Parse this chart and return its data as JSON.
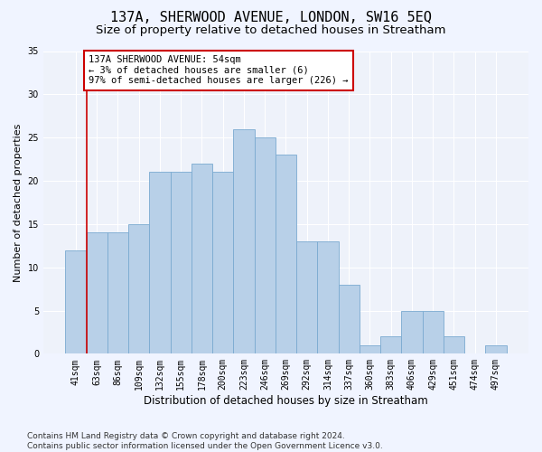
{
  "title": "137A, SHERWOOD AVENUE, LONDON, SW16 5EQ",
  "subtitle": "Size of property relative to detached houses in Streatham",
  "xlabel": "Distribution of detached houses by size in Streatham",
  "ylabel": "Number of detached properties",
  "categories": [
    "41sqm",
    "63sqm",
    "86sqm",
    "109sqm",
    "132sqm",
    "155sqm",
    "178sqm",
    "200sqm",
    "223sqm",
    "246sqm",
    "269sqm",
    "292sqm",
    "314sqm",
    "337sqm",
    "360sqm",
    "383sqm",
    "406sqm",
    "429sqm",
    "451sqm",
    "474sqm",
    "497sqm"
  ],
  "values": [
    12,
    14,
    14,
    15,
    21,
    21,
    22,
    21,
    26,
    25,
    23,
    13,
    13,
    8,
    1,
    2,
    5,
    5,
    2,
    0,
    1
  ],
  "bar_color": "#b8d0e8",
  "bar_edge_color": "#7aaad0",
  "background_color": "#eef2fa",
  "grid_color": "#ffffff",
  "annotation_text": "137A SHERWOOD AVENUE: 54sqm\n← 3% of detached houses are smaller (6)\n97% of semi-detached houses are larger (226) →",
  "annotation_box_color": "#ffffff",
  "annotation_box_edge_color": "#cc0000",
  "marker_line_color": "#cc0000",
  "ylim": [
    0,
    35
  ],
  "yticks": [
    0,
    5,
    10,
    15,
    20,
    25,
    30,
    35
  ],
  "footer_line1": "Contains HM Land Registry data © Crown copyright and database right 2024.",
  "footer_line2": "Contains public sector information licensed under the Open Government Licence v3.0.",
  "title_fontsize": 11,
  "subtitle_fontsize": 9.5,
  "xlabel_fontsize": 8.5,
  "ylabel_fontsize": 8,
  "tick_fontsize": 7,
  "footer_fontsize": 6.5,
  "annotation_fontsize": 7.5
}
